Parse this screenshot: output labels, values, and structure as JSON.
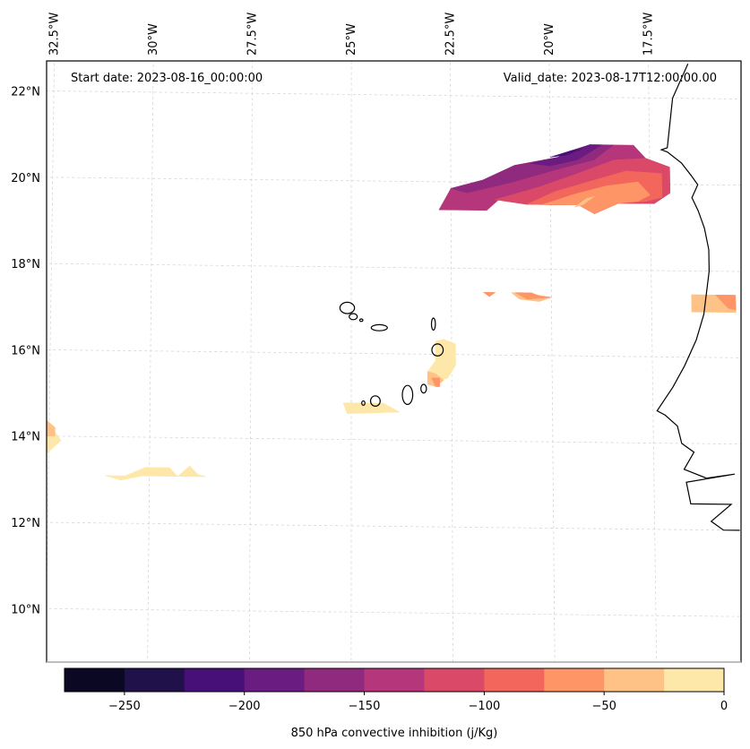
{
  "chart_data": {
    "type": "heatmap",
    "subtype": "filled-contour-map",
    "title": "",
    "annotations": {
      "start_date": "Start date: 2023-08-16_00:00:00",
      "valid_date": "Valid_date: 2023-08-17T12:00:00.00"
    },
    "lon_ticks": [
      {
        "value": -32.5,
        "label": "32.5°W"
      },
      {
        "value": -30.0,
        "label": "30°W"
      },
      {
        "value": -27.5,
        "label": "27.5°W"
      },
      {
        "value": -25.0,
        "label": "25°W"
      },
      {
        "value": -22.5,
        "label": "22.5°W"
      },
      {
        "value": -20.0,
        "label": "20°W"
      },
      {
        "value": -17.5,
        "label": "17.5°W"
      }
    ],
    "lat_ticks": [
      {
        "value": 22,
        "label": "22°N"
      },
      {
        "value": 20,
        "label": "20°N"
      },
      {
        "value": 18,
        "label": "18°N"
      },
      {
        "value": 16,
        "label": "16°N"
      },
      {
        "value": 14,
        "label": "14°N"
      },
      {
        "value": 12,
        "label": "12°N"
      },
      {
        "value": 10,
        "label": "10°N"
      }
    ],
    "extent": {
      "lon": [
        -32.6,
        -15.4
      ],
      "lat": [
        8.9,
        22.8
      ]
    },
    "grid": true,
    "colorbar": {
      "label": "850 hPa convective inhibition (j/Kg)",
      "orientation": "horizontal",
      "placement": "bottom",
      "range": [
        -275,
        0
      ],
      "levels": [
        -275,
        -250,
        -225,
        -200,
        -175,
        -150,
        -125,
        -100,
        -75,
        -50,
        -25,
        0
      ],
      "colors": [
        "#0a0822",
        "#20114b",
        "#471078",
        "#6a1c81",
        "#8f2a7f",
        "#b5367a",
        "#da4a68",
        "#f2665c",
        "#fd9567",
        "#fec286",
        "#fde8a9"
      ],
      "ticks": [
        {
          "value": -250,
          "label": "−250"
        },
        {
          "value": -200,
          "label": "−200"
        },
        {
          "value": -150,
          "label": "−150"
        },
        {
          "value": -100,
          "label": "−100"
        },
        {
          "value": -50,
          "label": "−50"
        },
        {
          "value": 0,
          "label": "0"
        }
      ]
    },
    "regions": [
      {
        "name": "northeast-cin-plume",
        "bands": [
          {
            "level": -137,
            "points": [
              [
                -22.8,
                19.35
              ],
              [
                -22.65,
                19.6
              ],
              [
                -22.5,
                19.85
              ],
              [
                -21.7,
                20.05
              ],
              [
                -20.9,
                20.4
              ],
              [
                -19.8,
                20.6
              ],
              [
                -19.0,
                20.9
              ],
              [
                -17.9,
                20.9
              ],
              [
                -17.6,
                20.6
              ],
              [
                -17.0,
                20.4
              ],
              [
                -17.0,
                19.8
              ],
              [
                -17.4,
                19.55
              ],
              [
                -18.3,
                19.55
              ],
              [
                -18.9,
                19.3
              ],
              [
                -19.3,
                19.5
              ],
              [
                -20.6,
                19.5
              ],
              [
                -21.3,
                19.6
              ],
              [
                -21.6,
                19.35
              ]
            ]
          },
          {
            "level": -162,
            "points": [
              [
                -22.5,
                19.85
              ],
              [
                -21.7,
                20.05
              ],
              [
                -20.9,
                20.4
              ],
              [
                -19.8,
                20.6
              ],
              [
                -19.0,
                20.9
              ],
              [
                -18.4,
                20.9
              ],
              [
                -18.9,
                20.55
              ],
              [
                -19.9,
                20.3
              ],
              [
                -21.0,
                20.0
              ],
              [
                -22.1,
                19.75
              ]
            ]
          },
          {
            "level": -187,
            "points": [
              [
                -20.5,
                20.45
              ],
              [
                -19.8,
                20.6
              ],
              [
                -19.5,
                20.75
              ],
              [
                -19.0,
                20.9
              ],
              [
                -18.7,
                20.9
              ],
              [
                -19.3,
                20.55
              ],
              [
                -20.0,
                20.4
              ]
            ]
          },
          {
            "level": -212,
            "points": [
              [
                -20.0,
                20.6
              ],
              [
                -19.5,
                20.75
              ],
              [
                -19.2,
                20.8
              ],
              [
                -19.6,
                20.65
              ]
            ]
          },
          {
            "level": -112,
            "points": [
              [
                -21.4,
                19.6
              ],
              [
                -20.3,
                19.9
              ],
              [
                -19.4,
                20.2
              ],
              [
                -18.4,
                20.55
              ],
              [
                -17.6,
                20.6
              ],
              [
                -17.0,
                20.4
              ],
              [
                -17.0,
                19.8
              ],
              [
                -17.4,
                19.55
              ],
              [
                -18.3,
                19.55
              ],
              [
                -18.9,
                19.3
              ],
              [
                -19.3,
                19.5
              ],
              [
                -20.6,
                19.5
              ]
            ]
          },
          {
            "level": -87,
            "points": [
              [
                -20.6,
                19.5
              ],
              [
                -19.9,
                19.8
              ],
              [
                -19.0,
                20.05
              ],
              [
                -18.1,
                20.3
              ],
              [
                -17.2,
                20.25
              ],
              [
                -17.2,
                19.7
              ],
              [
                -17.6,
                19.6
              ],
              [
                -18.3,
                19.55
              ],
              [
                -18.9,
                19.3
              ],
              [
                -19.3,
                19.5
              ]
            ]
          },
          {
            "level": -62,
            "points": [
              [
                -20.2,
                19.5
              ],
              [
                -19.4,
                19.75
              ],
              [
                -18.6,
                19.95
              ],
              [
                -17.8,
                20.05
              ],
              [
                -17.5,
                19.75
              ],
              [
                -17.8,
                19.6
              ],
              [
                -18.3,
                19.55
              ],
              [
                -18.9,
                19.3
              ],
              [
                -19.3,
                19.5
              ]
            ]
          },
          {
            "level": -37,
            "points": [
              [
                -19.4,
                19.45
              ],
              [
                -19.1,
                19.65
              ],
              [
                -18.9,
                19.7
              ],
              [
                -19.2,
                19.5
              ]
            ]
          }
        ]
      },
      {
        "name": "central-band-18n",
        "bands": [
          {
            "level": -37,
            "points": [
              [
                -21.0,
                17.45
              ],
              [
                -20.8,
                17.3
              ],
              [
                -20.3,
                17.25
              ],
              [
                -20.0,
                17.35
              ],
              [
                -20.7,
                17.45
              ]
            ]
          },
          {
            "level": -62,
            "points": [
              [
                -21.7,
                17.45
              ],
              [
                -21.4,
                17.45
              ],
              [
                -21.55,
                17.35
              ]
            ]
          },
          {
            "level": -62,
            "points": [
              [
                -20.9,
                17.45
              ],
              [
                -20.5,
                17.45
              ],
              [
                -20.3,
                17.38
              ],
              [
                -20.0,
                17.35
              ],
              [
                -20.6,
                17.3
              ]
            ]
          }
        ]
      },
      {
        "name": "coastal-band-17n",
        "bands": [
          {
            "level": -37,
            "points": [
              [
                -16.5,
                17.45
              ],
              [
                -15.4,
                17.45
              ],
              [
                -15.4,
                17.05
              ],
              [
                -16.5,
                17.05
              ],
              [
                -16.5,
                17.15
              ]
            ]
          },
          {
            "level": -62,
            "points": [
              [
                -15.9,
                17.45
              ],
              [
                -15.4,
                17.45
              ],
              [
                -15.4,
                17.1
              ],
              [
                -15.6,
                17.15
              ]
            ]
          }
        ]
      },
      {
        "name": "cape-verde-east",
        "bands": [
          {
            "level": -12,
            "points": [
              [
                -22.9,
                16.3
              ],
              [
                -22.9,
                15.85
              ],
              [
                -23.1,
                15.6
              ],
              [
                -23.1,
                15.3
              ],
              [
                -22.6,
                15.45
              ],
              [
                -22.4,
                15.75
              ],
              [
                -22.4,
                16.25
              ],
              [
                -22.7,
                16.35
              ]
            ]
          },
          {
            "level": -37,
            "points": [
              [
                -23.1,
                15.6
              ],
              [
                -23.1,
                15.3
              ],
              [
                -22.9,
                15.25
              ],
              [
                -22.7,
                15.4
              ],
              [
                -22.9,
                15.55
              ]
            ]
          },
          {
            "level": -62,
            "points": [
              [
                -23.0,
                15.45
              ],
              [
                -22.9,
                15.25
              ],
              [
                -22.8,
                15.25
              ],
              [
                -22.8,
                15.45
              ]
            ]
          }
        ]
      },
      {
        "name": "cape-verde-south",
        "bands": [
          {
            "level": -12,
            "points": [
              [
                -25.2,
                14.85
              ],
              [
                -24.2,
                14.85
              ],
              [
                -23.8,
                14.65
              ],
              [
                -25.1,
                14.6
              ]
            ]
          }
        ]
      },
      {
        "name": "west-edge-14n",
        "bands": [
          {
            "level": -12,
            "points": [
              [
                -32.6,
                14.4
              ],
              [
                -32.6,
                13.55
              ],
              [
                -32.2,
                13.9
              ],
              [
                -32.35,
                14.1
              ]
            ]
          },
          {
            "level": -37,
            "points": [
              [
                -32.6,
                14.4
              ],
              [
                -32.35,
                14.2
              ],
              [
                -32.35,
                14.0
              ],
              [
                -32.6,
                14.0
              ]
            ]
          }
        ]
      },
      {
        "name": "southwest-band-13n",
        "bands": [
          {
            "level": -12,
            "points": [
              [
                -31.1,
                13.1
              ],
              [
                -30.6,
                13.1
              ],
              [
                -30.1,
                13.3
              ],
              [
                -29.5,
                13.3
              ],
              [
                -29.3,
                13.1
              ],
              [
                -29.0,
                13.35
              ],
              [
                -28.8,
                13.15
              ],
              [
                -28.6,
                13.1
              ],
              [
                -30.2,
                13.1
              ],
              [
                -30.7,
                13.0
              ]
            ]
          }
        ]
      }
    ],
    "coastlines": [
      {
        "name": "africa-west-coast",
        "points": [
          [
            -16.5,
            22.8
          ],
          [
            -16.9,
            22.0
          ],
          [
            -17.05,
            20.85
          ],
          [
            -17.2,
            20.8
          ],
          [
            -17.05,
            20.75
          ],
          [
            -16.7,
            20.5
          ],
          [
            -16.45,
            20.2
          ],
          [
            -16.3,
            20.0
          ],
          [
            -16.45,
            19.7
          ],
          [
            -16.3,
            19.4
          ],
          [
            -16.15,
            19.0
          ],
          [
            -16.05,
            18.5
          ],
          [
            -16.05,
            18.0
          ],
          [
            -16.2,
            17.0
          ],
          [
            -16.4,
            16.4
          ],
          [
            -16.7,
            15.8
          ],
          [
            -17.0,
            15.3
          ],
          [
            -17.4,
            14.75
          ],
          [
            -17.2,
            14.65
          ],
          [
            -16.9,
            14.4
          ],
          [
            -16.8,
            14.0
          ],
          [
            -16.5,
            13.8
          ],
          [
            -16.75,
            13.4
          ],
          [
            -16.2,
            13.2
          ],
          [
            -15.5,
            13.3
          ],
          [
            -16.7,
            13.1
          ],
          [
            -16.6,
            12.6
          ],
          [
            -15.6,
            12.6
          ],
          [
            -16.1,
            12.2
          ],
          [
            -15.8,
            12.0
          ],
          [
            -15.4,
            12.0
          ]
        ]
      }
    ],
    "islands": [
      {
        "name": "santo-antao",
        "lon": -25.1,
        "lat": 17.05,
        "rx": 0.18,
        "ry": 0.13
      },
      {
        "name": "sao-vicente",
        "lon": -24.95,
        "lat": 16.85,
        "rx": 0.1,
        "ry": 0.07
      },
      {
        "name": "santa-luzia",
        "lon": -24.75,
        "lat": 16.77,
        "rx": 0.04,
        "ry": 0.03
      },
      {
        "name": "sao-nicolau",
        "lon": -24.3,
        "lat": 16.6,
        "rx": 0.2,
        "ry": 0.07
      },
      {
        "name": "sal",
        "lon": -22.95,
        "lat": 16.7,
        "rx": 0.05,
        "ry": 0.14
      },
      {
        "name": "boa-vista",
        "lon": -22.85,
        "lat": 16.1,
        "rx": 0.14,
        "ry": 0.14
      },
      {
        "name": "maio",
        "lon": -23.2,
        "lat": 15.2,
        "rx": 0.07,
        "ry": 0.1
      },
      {
        "name": "santiago",
        "lon": -23.6,
        "lat": 15.05,
        "rx": 0.13,
        "ry": 0.22
      },
      {
        "name": "fogo",
        "lon": -24.4,
        "lat": 14.9,
        "rx": 0.12,
        "ry": 0.12
      },
      {
        "name": "brava",
        "lon": -24.7,
        "lat": 14.85,
        "rx": 0.04,
        "ry": 0.05
      }
    ]
  }
}
